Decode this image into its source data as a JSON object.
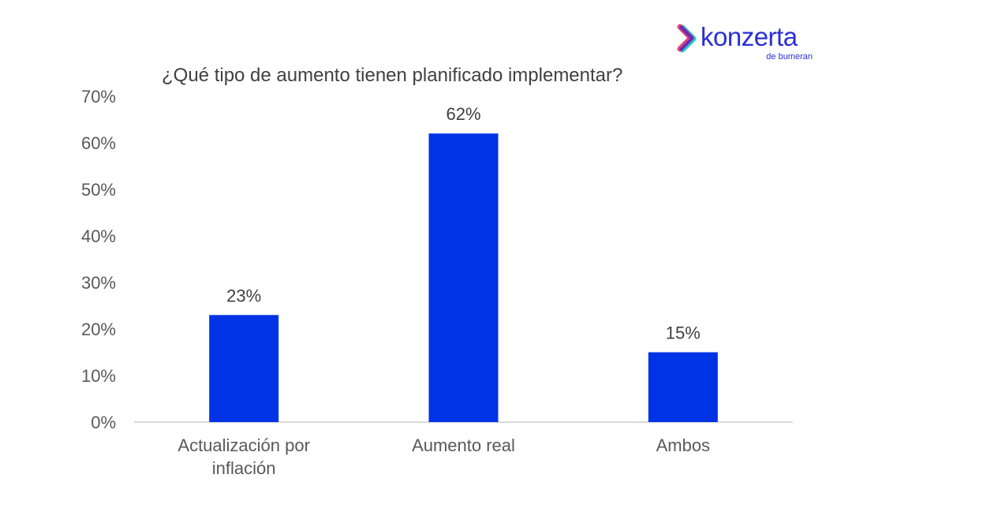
{
  "logo": {
    "name": "konzerta",
    "subtitle": "de bumeran"
  },
  "chart_data": {
    "type": "bar",
    "title": "¿Qué tipo de aumento tienen planificado implementar?",
    "categories": [
      "Actualización por inflación",
      "Aumento real",
      "Ambos"
    ],
    "category_lines": [
      [
        "Actualización por",
        "inflación"
      ],
      [
        "Aumento real"
      ],
      [
        "Ambos"
      ]
    ],
    "values": [
      23,
      62,
      15
    ],
    "data_labels": [
      "23%",
      "62%",
      "15%"
    ],
    "ylim": [
      0,
      70
    ],
    "yticks": [
      0,
      10,
      20,
      30,
      40,
      50,
      60,
      70
    ],
    "ytick_labels": [
      "0%",
      "10%",
      "20%",
      "30%",
      "40%",
      "50%",
      "60%",
      "70%"
    ],
    "xlabel": "",
    "ylabel": "",
    "grid": false,
    "bar_color": "#0033e6"
  }
}
